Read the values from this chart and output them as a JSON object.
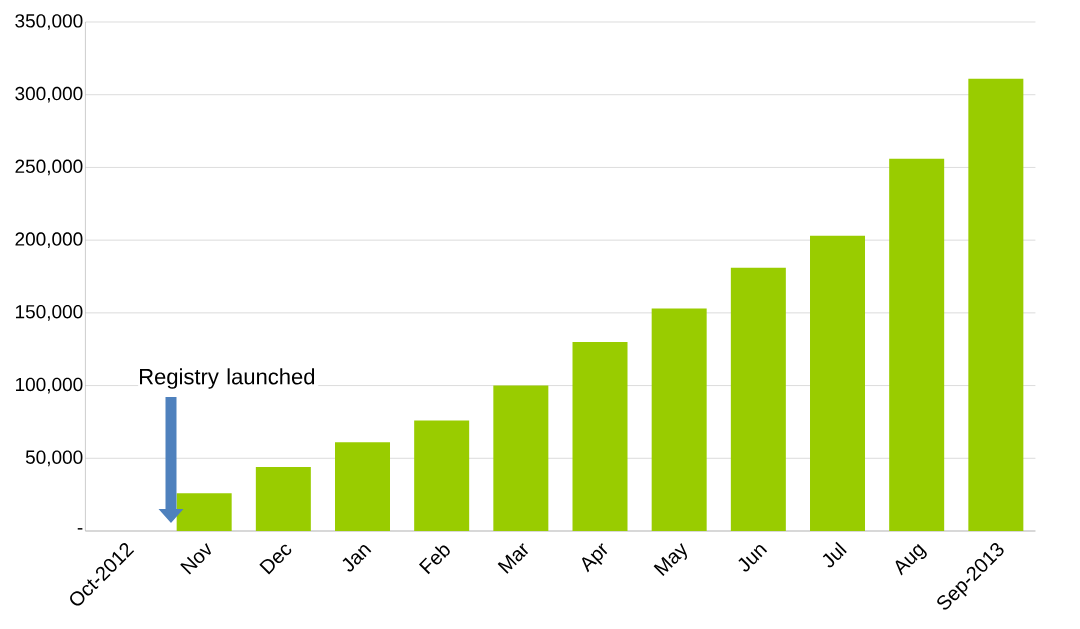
{
  "chart_data": {
    "type": "bar",
    "categories": [
      "Oct-2012",
      "Nov",
      "Dec",
      "Jan",
      "Feb",
      "Mar",
      "Apr",
      "May",
      "Jun",
      "Jul",
      "Aug",
      "Sep-2013"
    ],
    "values": [
      null,
      26000,
      44000,
      61000,
      76000,
      100000,
      130000,
      153000,
      181000,
      203000,
      256000,
      311000
    ],
    "color": "#99cc00",
    "ylim": [
      0,
      350000
    ],
    "yticks": [
      {
        "value": 0,
        "label": "-"
      },
      {
        "value": 50000,
        "label": "50,000"
      },
      {
        "value": 100000,
        "label": "100,000"
      },
      {
        "value": 150000,
        "label": "150,000"
      },
      {
        "value": 200000,
        "label": "200,000"
      },
      {
        "value": 250000,
        "label": "250,000"
      },
      {
        "value": 300000,
        "label": "300,000"
      },
      {
        "value": 350000,
        "label": "350,000"
      }
    ],
    "grid": "y",
    "annotations": [
      "Registry launched"
    ]
  }
}
